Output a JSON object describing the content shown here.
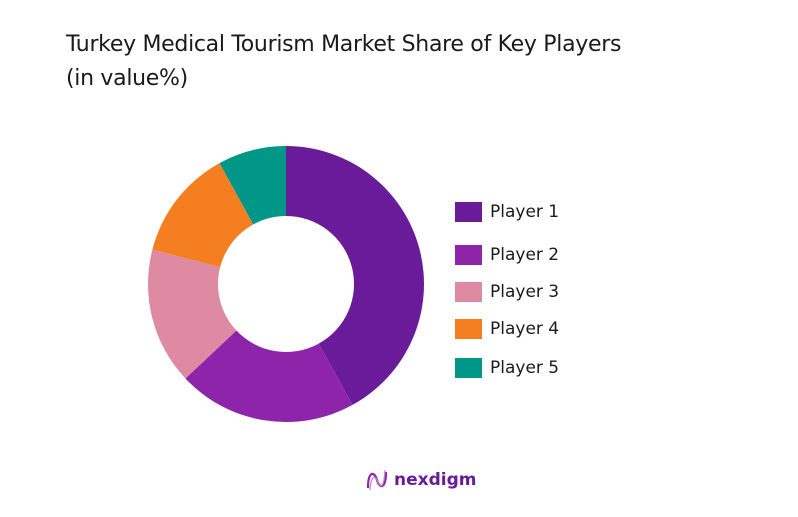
{
  "title_line1": "Turkey Medical Tourism Market Share of Key Players",
  "title_line2": "(in value%)",
  "brand": "nexdigm",
  "chart_data": {
    "type": "pie",
    "subtype": "donut",
    "title": "Turkey Medical Tourism Market Share of Key Players (in value%)",
    "categories": [
      "Player 1",
      "Player 2",
      "Player 3",
      "Player 4",
      "Player 5"
    ],
    "values": [
      42,
      21,
      16,
      13,
      8
    ],
    "colors": [
      "#6a1b9a",
      "#8e24aa",
      "#de8aa2",
      "#f57f20",
      "#009688"
    ],
    "legend_position": "right"
  }
}
